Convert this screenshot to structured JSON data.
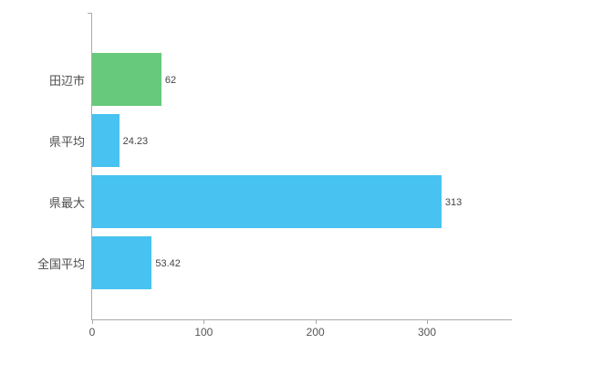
{
  "chart_data": {
    "type": "bar",
    "orientation": "horizontal",
    "title": "",
    "xlabel": "",
    "ylabel": "",
    "categories": [
      "田辺市",
      "県平均",
      "県最大",
      "全国平均"
    ],
    "values": [
      62,
      24.23,
      313,
      53.42
    ],
    "value_labels": [
      "62",
      "24.23",
      "313",
      "53.42"
    ],
    "bar_colors": [
      "#67c97c",
      "#47c2f1",
      "#47c2f1",
      "#47c2f1"
    ],
    "x_ticks": [
      0,
      100,
      200,
      300
    ],
    "x_tick_labels": [
      "0",
      "100",
      "200",
      "300"
    ],
    "xlim": [
      0,
      376
    ],
    "grid": false,
    "legend_position": "none",
    "axis_color": "#aaaaaa",
    "category_label_color": "#4d4d4d",
    "value_label_color": "#444444",
    "tick_label_color": "#555555",
    "background_color": "#ffffff"
  }
}
